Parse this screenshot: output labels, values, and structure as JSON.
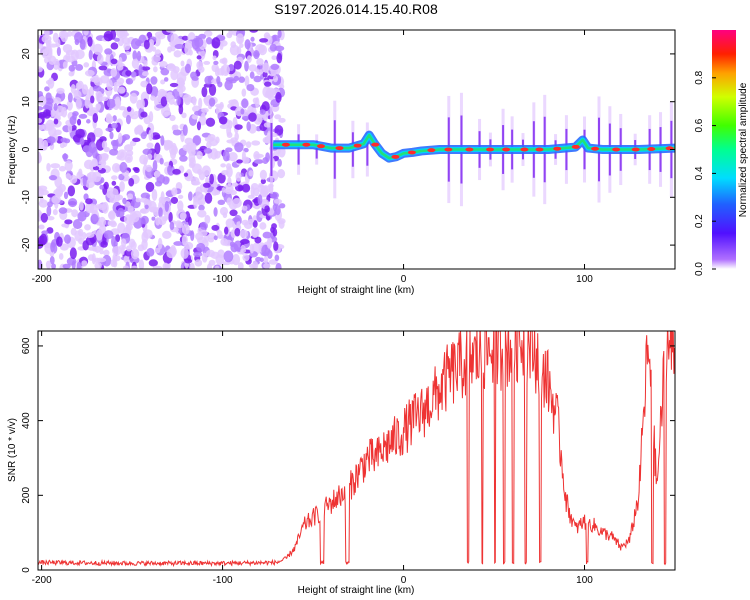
{
  "title": "S197.2026.014.15.40.R08",
  "chart_data": [
    {
      "type": "heatmap",
      "xlabel": "Height of straight line (km)",
      "ylabel": "Frequency (Hz)",
      "xlim": [
        -202,
        150
      ],
      "ylim": [
        -25,
        25
      ],
      "xticks": [
        -200,
        -100,
        0,
        100
      ],
      "yticks": [
        -20,
        -10,
        0,
        10,
        20
      ],
      "colorbar": {
        "label": "Normalized spectral amplitude",
        "range": [
          0,
          1
        ],
        "ticks": [
          0.0,
          0.2,
          0.4,
          0.6,
          0.8
        ]
      },
      "colors": {
        "noise_light": "#e2c8ff",
        "noise_mid": "#b07cff",
        "noise_dark": "#7a1ff0",
        "band_low": "#2a6bff",
        "band_mid": "#22e07a",
        "band_high": "#ff2a2a"
      },
      "noise_region_x": [
        -202,
        -67
      ],
      "signal_track": {
        "x": [
          -72,
          -60,
          -50,
          -40,
          -30,
          -22,
          -19,
          -16,
          -12,
          -8,
          -4,
          0,
          5,
          10,
          20,
          40,
          60,
          80,
          95,
          99,
          102,
          110,
          130,
          150
        ],
        "y": [
          1.0,
          1.0,
          1.0,
          0.3,
          0.3,
          1.2,
          3.0,
          1.2,
          -0.8,
          -1.8,
          -1.5,
          -0.8,
          -0.6,
          -0.3,
          0.0,
          0.0,
          0.0,
          0.0,
          0.5,
          2.0,
          0.3,
          0.0,
          0.0,
          0.3
        ]
      },
      "streak_x": [
        -73,
        -58,
        -48,
        -38,
        -28,
        -20,
        25,
        32,
        42,
        48,
        55,
        60,
        66,
        72,
        78,
        84,
        90,
        100,
        108,
        114,
        120,
        128,
        136,
        142,
        148
      ]
    },
    {
      "type": "line",
      "xlabel": "Height of straight line (km)",
      "ylabel": "SNR (10 * v/v)",
      "xlim": [
        -202,
        150
      ],
      "ylim": [
        0,
        640
      ],
      "xticks": [
        -200,
        -100,
        0,
        100
      ],
      "yticks": [
        0,
        200,
        400,
        600
      ],
      "color": "#ee3333",
      "series": [
        {
          "name": "",
          "x": [
            -202,
            -150,
            -100,
            -70,
            -65,
            -60,
            -55,
            -50,
            -45,
            -40,
            -35,
            -30,
            -25,
            -20,
            -15,
            -10,
            -5,
            0,
            5,
            10,
            15,
            20,
            25,
            30,
            35,
            40,
            45,
            50,
            55,
            60,
            65,
            70,
            75,
            80,
            85,
            90,
            95,
            100,
            105,
            110,
            115,
            120,
            125,
            130,
            135,
            140,
            145,
            150
          ],
          "y": [
            20,
            18,
            18,
            20,
            30,
            60,
            120,
            140,
            160,
            180,
            200,
            220,
            260,
            300,
            300,
            330,
            350,
            370,
            400,
            420,
            450,
            480,
            520,
            540,
            560,
            570,
            580,
            600,
            580,
            600,
            620,
            600,
            560,
            500,
            400,
            180,
            110,
            130,
            120,
            100,
            90,
            60,
            80,
            200,
            600,
            220,
            610,
            580
          ]
        }
      ],
      "dropouts": [
        [
          -46,
          -44
        ],
        [
          -32,
          -30
        ],
        [
          35,
          36
        ],
        [
          43,
          44
        ],
        [
          50,
          51
        ],
        [
          55,
          56
        ],
        [
          60,
          61
        ],
        [
          67,
          68
        ],
        [
          75,
          76
        ],
        [
          101,
          102
        ],
        [
          137,
          138
        ],
        [
          144,
          145
        ]
      ]
    }
  ]
}
